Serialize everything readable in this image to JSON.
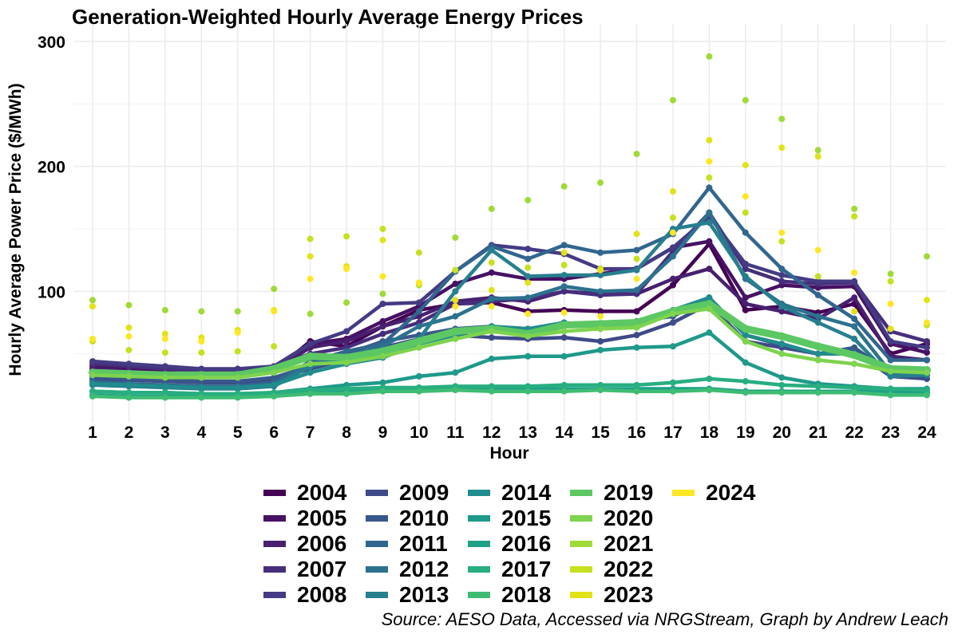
{
  "chart_data": {
    "type": "line",
    "title": "Generation-Weighted Hourly Average Energy Prices",
    "xlabel": "Hour",
    "ylabel": "Hourly Average Power Price ($/MWh)",
    "x": [
      1,
      2,
      3,
      4,
      5,
      6,
      7,
      8,
      9,
      10,
      11,
      12,
      13,
      14,
      15,
      16,
      17,
      18,
      19,
      20,
      21,
      22,
      23,
      24
    ],
    "xlim": [
      1,
      24
    ],
    "ylim": [
      0,
      300
    ],
    "yticks": [
      100,
      200,
      300
    ],
    "grid": true,
    "legend_position": "bottom",
    "caption": "Source: AESO Data, Accessed via NRGStream, Graph by Andrew Leach",
    "series": [
      {
        "name": "2004",
        "color": "#440154",
        "style": "line",
        "values": [
          37,
          36,
          34,
          33,
          33,
          36,
          60,
          56,
          72,
          85,
          90,
          91,
          84,
          85,
          84,
          84,
          105,
          138,
          85,
          88,
          83,
          90,
          50,
          58
        ]
      },
      {
        "name": "2005",
        "color": "#471164",
        "style": "line",
        "values": [
          40,
          38,
          36,
          35,
          35,
          38,
          58,
          62,
          76,
          88,
          106,
          115,
          110,
          110,
          114,
          118,
          135,
          140,
          95,
          105,
          103,
          104,
          58,
          51
        ]
      },
      {
        "name": "2006",
        "color": "#48206F",
        "style": "line",
        "values": [
          38,
          36,
          34,
          33,
          33,
          37,
          55,
          60,
          72,
          80,
          92,
          95,
          92,
          100,
          98,
          98,
          110,
          118,
          90,
          84,
          78,
          95,
          48,
          45
        ]
      },
      {
        "name": "2007",
        "color": "#472E7C",
        "style": "line",
        "values": [
          42,
          40,
          38,
          36,
          36,
          40,
          50,
          55,
          66,
          75,
          90,
          92,
          94,
          100,
          97,
          98,
          132,
          163,
          118,
          108,
          106,
          107,
          68,
          60
        ]
      },
      {
        "name": "2008",
        "color": "#443B84",
        "style": "line",
        "values": [
          44,
          42,
          40,
          38,
          38,
          40,
          58,
          68,
          90,
          91,
          116,
          137,
          134,
          130,
          118,
          118,
          135,
          160,
          122,
          113,
          108,
          108,
          60,
          55
        ]
      },
      {
        "name": "2009",
        "color": "#3E4A89",
        "style": "line",
        "values": [
          30,
          29,
          28,
          27,
          27,
          29,
          38,
          45,
          55,
          62,
          65,
          63,
          62,
          63,
          60,
          65,
          75,
          90,
          60,
          55,
          50,
          52,
          32,
          30
        ]
      },
      {
        "name": "2010",
        "color": "#38588C",
        "style": "line",
        "values": [
          32,
          30,
          29,
          28,
          28,
          31,
          40,
          50,
          60,
          65,
          70,
          72,
          70,
          74,
          73,
          76,
          80,
          95,
          65,
          57,
          50,
          55,
          35,
          33
        ]
      },
      {
        "name": "2011",
        "color": "#31668E",
        "style": "line",
        "values": [
          28,
          26,
          25,
          24,
          24,
          27,
          44,
          52,
          58,
          84,
          116,
          136,
          126,
          137,
          131,
          133,
          146,
          183,
          147,
          118,
          97,
          78,
          45,
          45
        ]
      },
      {
        "name": "2012",
        "color": "#2C728E",
        "style": "line",
        "values": [
          26,
          25,
          24,
          23,
          23,
          25,
          42,
          48,
          56,
          72,
          80,
          94,
          95,
          104,
          100,
          101,
          128,
          163,
          110,
          90,
          80,
          72,
          35,
          33
        ]
      },
      {
        "name": "2013",
        "color": "#277F8E",
        "style": "line",
        "values": [
          25,
          24,
          23,
          22,
          22,
          24,
          40,
          46,
          52,
          62,
          100,
          133,
          112,
          113,
          113,
          117,
          150,
          155,
          112,
          88,
          75,
          62,
          32,
          33
        ]
      },
      {
        "name": "2014",
        "color": "#218C8D",
        "style": "line",
        "values": [
          26,
          25,
          24,
          23,
          23,
          25,
          35,
          42,
          47,
          58,
          65,
          72,
          70,
          75,
          72,
          74,
          85,
          95,
          65,
          58,
          50,
          50,
          36,
          34
        ]
      },
      {
        "name": "2015",
        "color": "#1F998A",
        "style": "line",
        "values": [
          20,
          19,
          19,
          18,
          18,
          19,
          22,
          25,
          27,
          32,
          35,
          46,
          48,
          48,
          53,
          55,
          56,
          67,
          43,
          31,
          26,
          24,
          22,
          22
        ]
      },
      {
        "name": "2016",
        "color": "#1FA188",
        "style": "line",
        "values": [
          17,
          16,
          16,
          16,
          16,
          17,
          19,
          20,
          21,
          21,
          22,
          22,
          22,
          22,
          22,
          22,
          22,
          22,
          20,
          20,
          20,
          20,
          20,
          19
        ]
      },
      {
        "name": "2017",
        "color": "#28AE80",
        "style": "line",
        "values": [
          20,
          19,
          19,
          18,
          18,
          19,
          21,
          22,
          23,
          23,
          24,
          24,
          24,
          25,
          25,
          25,
          27,
          30,
          28,
          25,
          24,
          23,
          22,
          21
        ]
      },
      {
        "name": "2018",
        "color": "#3FBC73",
        "style": "line",
        "values": [
          16,
          15,
          15,
          15,
          15,
          16,
          18,
          18,
          20,
          20,
          21,
          20,
          20,
          20,
          21,
          20,
          20,
          21,
          19,
          19,
          19,
          19,
          17,
          17
        ]
      },
      {
        "name": "2019",
        "color": "#5DC863",
        "style": "line",
        "values": [
          35,
          34,
          33,
          33,
          33,
          38,
          48,
          47,
          52,
          60,
          68,
          70,
          66,
          73,
          74,
          75,
          84,
          90,
          70,
          64,
          56,
          49,
          38,
          37
        ]
      },
      {
        "name": "2020",
        "color": "#7FD34E",
        "style": "line",
        "values": [
          33,
          32,
          31,
          31,
          31,
          35,
          42,
          43,
          48,
          55,
          62,
          68,
          64,
          68,
          70,
          71,
          82,
          86,
          60,
          50,
          45,
          42,
          36,
          35
        ]
      },
      {
        "name": "2021",
        "color": "#A0DA39",
        "style": "points",
        "values": [
          93,
          89,
          85,
          84,
          84,
          102,
          82,
          91,
          98,
          105,
          143,
          166,
          173,
          184,
          187,
          210,
          253,
          288,
          253,
          238,
          213,
          166,
          114,
          128
        ]
      },
      {
        "name": "2022",
        "color": "#C7E020",
        "style": "points",
        "values": [
          60,
          53,
          51,
          51,
          52,
          56,
          142,
          144,
          150,
          131,
          117,
          123,
          119,
          121,
          118,
          126,
          159,
          191,
          163,
          140,
          112,
          160,
          108,
          73
        ]
      },
      {
        "name": "2023",
        "color": "#E1E318",
        "style": "points",
        "values": [
          88,
          71,
          66,
          63,
          69,
          85,
          128,
          120,
          141,
          106,
          93,
          101,
          107,
          131,
          117,
          146,
          180,
          221,
          201,
          215,
          208,
          84,
          70,
          93
        ]
      },
      {
        "name": "2024",
        "color": "#FDE725",
        "style": "points",
        "values": [
          62,
          64,
          62,
          60,
          67,
          84,
          110,
          118,
          112,
          107,
          88,
          88,
          82,
          83,
          80,
          110,
          147,
          204,
          176,
          147,
          133,
          115,
          90,
          75
        ]
      }
    ]
  }
}
